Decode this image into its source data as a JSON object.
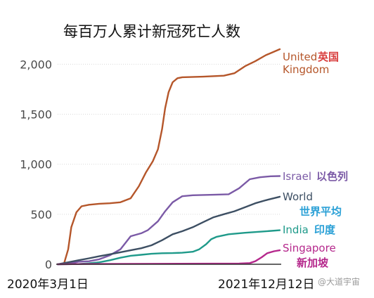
{
  "chart_data": {
    "type": "line",
    "title": "每百万人累计新冠死亡人数",
    "xlabel": "",
    "ylabel": "",
    "x_range": [
      "2020-03-01",
      "2021-12-12"
    ],
    "x_tick_labels": [
      "2020年3月1日",
      "2021年12月12日"
    ],
    "ylim": [
      0,
      2150
    ],
    "yticks": [
      0,
      500,
      1000,
      1500,
      2000
    ],
    "ytick_labels": [
      "0",
      "500",
      "1,000",
      "1,500",
      "2,000"
    ],
    "grid": true,
    "series": [
      {
        "name": "United Kingdom",
        "name_cn": "英国",
        "color": "#b5562a",
        "points": [
          [
            "2020-03-01",
            0
          ],
          [
            "2020-03-20",
            10
          ],
          [
            "2020-04-01",
            150
          ],
          [
            "2020-04-10",
            370
          ],
          [
            "2020-04-25",
            520
          ],
          [
            "2020-05-10",
            580
          ],
          [
            "2020-06-01",
            595
          ],
          [
            "2020-07-01",
            605
          ],
          [
            "2020-08-01",
            610
          ],
          [
            "2020-09-01",
            620
          ],
          [
            "2020-10-01",
            660
          ],
          [
            "2020-10-25",
            780
          ],
          [
            "2020-11-15",
            920
          ],
          [
            "2020-12-05",
            1030
          ],
          [
            "2020-12-20",
            1150
          ],
          [
            "2021-01-01",
            1350
          ],
          [
            "2021-01-10",
            1560
          ],
          [
            "2021-01-20",
            1720
          ],
          [
            "2021-02-01",
            1820
          ],
          [
            "2021-02-15",
            1860
          ],
          [
            "2021-03-01",
            1870
          ],
          [
            "2021-05-01",
            1875
          ],
          [
            "2021-07-01",
            1885
          ],
          [
            "2021-08-01",
            1910
          ],
          [
            "2021-09-01",
            1980
          ],
          [
            "2021-10-01",
            2030
          ],
          [
            "2021-11-01",
            2090
          ],
          [
            "2021-12-12",
            2150
          ]
        ]
      },
      {
        "name": "Israel",
        "name_cn": "以色列",
        "color": "#7b5aa6",
        "points": [
          [
            "2020-03-01",
            0
          ],
          [
            "2020-04-01",
            5
          ],
          [
            "2020-05-01",
            25
          ],
          [
            "2020-06-01",
            30
          ],
          [
            "2020-07-01",
            50
          ],
          [
            "2020-08-01",
            90
          ],
          [
            "2020-09-01",
            150
          ],
          [
            "2020-10-01",
            280
          ],
          [
            "2020-11-01",
            310
          ],
          [
            "2020-11-20",
            340
          ],
          [
            "2020-12-20",
            430
          ],
          [
            "2021-01-10",
            530
          ],
          [
            "2021-02-01",
            620
          ],
          [
            "2021-03-01",
            680
          ],
          [
            "2021-04-01",
            690
          ],
          [
            "2021-06-01",
            695
          ],
          [
            "2021-07-15",
            700
          ],
          [
            "2021-08-15",
            760
          ],
          [
            "2021-09-15",
            850
          ],
          [
            "2021-10-15",
            870
          ],
          [
            "2021-11-15",
            880
          ],
          [
            "2021-12-12",
            882
          ]
        ]
      },
      {
        "name": "World",
        "name_cn": "世界平均",
        "color": "#3d4f63",
        "points": [
          [
            "2020-03-01",
            0
          ],
          [
            "2020-04-01",
            20
          ],
          [
            "2020-05-01",
            40
          ],
          [
            "2020-06-01",
            60
          ],
          [
            "2020-07-01",
            80
          ],
          [
            "2020-08-01",
            100
          ],
          [
            "2020-09-01",
            120
          ],
          [
            "2020-10-01",
            140
          ],
          [
            "2020-11-01",
            160
          ],
          [
            "2020-12-01",
            190
          ],
          [
            "2021-01-01",
            240
          ],
          [
            "2021-02-01",
            300
          ],
          [
            "2021-03-01",
            330
          ],
          [
            "2021-04-01",
            370
          ],
          [
            "2021-05-01",
            420
          ],
          [
            "2021-06-01",
            470
          ],
          [
            "2021-07-01",
            500
          ],
          [
            "2021-08-01",
            530
          ],
          [
            "2021-09-01",
            570
          ],
          [
            "2021-10-01",
            610
          ],
          [
            "2021-11-01",
            640
          ],
          [
            "2021-12-12",
            675
          ]
        ]
      },
      {
        "name": "India",
        "name_cn": "印度",
        "color": "#1f9a8a",
        "points": [
          [
            "2020-03-01",
            0
          ],
          [
            "2020-05-01",
            2
          ],
          [
            "2020-06-01",
            10
          ],
          [
            "2020-07-01",
            20
          ],
          [
            "2020-08-01",
            40
          ],
          [
            "2020-09-01",
            65
          ],
          [
            "2020-10-01",
            85
          ],
          [
            "2020-11-01",
            95
          ],
          [
            "2020-12-01",
            105
          ],
          [
            "2021-01-01",
            110
          ],
          [
            "2021-02-01",
            112
          ],
          [
            "2021-03-01",
            115
          ],
          [
            "2021-04-01",
            125
          ],
          [
            "2021-04-20",
            150
          ],
          [
            "2021-05-10",
            200
          ],
          [
            "2021-05-25",
            250
          ],
          [
            "2021-06-10",
            275
          ],
          [
            "2021-07-15",
            300
          ],
          [
            "2021-09-01",
            315
          ],
          [
            "2021-10-15",
            325
          ],
          [
            "2021-12-12",
            340
          ]
        ]
      },
      {
        "name": "Singapore",
        "name_cn": "新加坡",
        "color": "#b5288c",
        "points": [
          [
            "2020-03-01",
            0
          ],
          [
            "2020-06-01",
            3
          ],
          [
            "2020-12-01",
            5
          ],
          [
            "2021-06-01",
            6
          ],
          [
            "2021-08-15",
            8
          ],
          [
            "2021-09-15",
            12
          ],
          [
            "2021-10-01",
            30
          ],
          [
            "2021-10-20",
            70
          ],
          [
            "2021-11-05",
            110
          ],
          [
            "2021-11-25",
            130
          ],
          [
            "2021-12-12",
            140
          ]
        ]
      }
    ]
  },
  "watermark": "@大道宇宙"
}
